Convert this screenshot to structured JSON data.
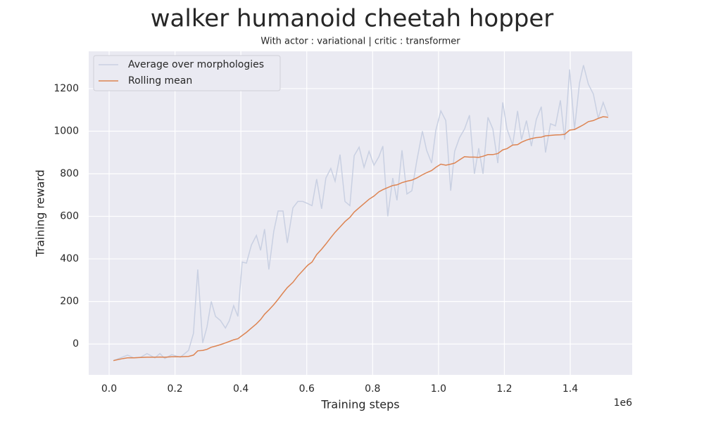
{
  "chart_data": {
    "type": "line",
    "title": "walker humanoid cheetah hopper",
    "subtitle": "With actor : variational | critic : transformer",
    "xlabel": "Training steps",
    "ylabel": "Training reward",
    "x_offset_label": "1e6",
    "x": [
      13000,
      43000,
      56000,
      75000,
      96000,
      115000,
      139000,
      154000,
      169000,
      190000,
      216000,
      241000,
      256000,
      269000,
      284000,
      297000,
      310000,
      323000,
      338000,
      353000,
      365000,
      378000,
      391000,
      404000,
      417000,
      432000,
      447000,
      460000,
      472000,
      485000,
      500000,
      513000,
      528000,
      541000,
      558000,
      573000,
      588000,
      603000,
      616000,
      630000,
      645000,
      658000,
      673000,
      686000,
      701000,
      716000,
      731000,
      744000,
      759000,
      774000,
      789000,
      804000,
      819000,
      831000,
      846000,
      861000,
      874000,
      889000,
      904000,
      919000,
      934000,
      951000,
      964000,
      979000,
      992000,
      1007000,
      1022000,
      1037000,
      1049000,
      1064000,
      1079000,
      1094000,
      1109000,
      1122000,
      1135000,
      1150000,
      1165000,
      1180000,
      1195000,
      1208000,
      1225000,
      1240000,
      1252000,
      1267000,
      1282000,
      1297000,
      1312000,
      1325000,
      1340000,
      1355000,
      1370000,
      1383000,
      1398000,
      1413000,
      1428000,
      1440000,
      1455000,
      1470000,
      1485000,
      1500000,
      1515000
    ],
    "series": [
      {
        "name": "Average over morphologies",
        "color": "#c9d0e2",
        "values": [
          -78,
          -60,
          -52,
          -65,
          -62,
          -45,
          -65,
          -45,
          -68,
          -50,
          -62,
          -30,
          50,
          350,
          5,
          80,
          200,
          130,
          110,
          75,
          110,
          180,
          130,
          385,
          380,
          465,
          510,
          440,
          540,
          350,
          530,
          625,
          625,
          475,
          640,
          670,
          670,
          660,
          650,
          775,
          635,
          780,
          825,
          765,
          890,
          670,
          650,
          885,
          925,
          830,
          905,
          840,
          880,
          930,
          600,
          780,
          675,
          910,
          705,
          720,
          860,
          1000,
          910,
          850,
          1005,
          1095,
          1050,
          720,
          905,
          970,
          1010,
          1075,
          800,
          920,
          800,
          1065,
          1010,
          850,
          1135,
          1010,
          935,
          1095,
          960,
          1050,
          930,
          1055,
          1115,
          900,
          1035,
          1025,
          1145,
          960,
          1290,
          1010,
          1225,
          1310,
          1220,
          1175,
          1060,
          1135,
          1070
        ]
      },
      {
        "name": "Rolling mean",
        "color": "#dd8452",
        "values": [
          -78,
          -68,
          -65,
          -65,
          -63,
          -62,
          -62,
          -61,
          -62,
          -60,
          -60,
          -58,
          -52,
          -32,
          -30,
          -25,
          -15,
          -10,
          -3,
          5,
          12,
          20,
          25,
          40,
          55,
          75,
          95,
          115,
          140,
          160,
          185,
          210,
          240,
          265,
          290,
          320,
          345,
          370,
          385,
          420,
          445,
          470,
          500,
          525,
          550,
          575,
          595,
          620,
          640,
          660,
          680,
          695,
          715,
          725,
          735,
          745,
          748,
          758,
          765,
          770,
          780,
          795,
          805,
          815,
          830,
          845,
          840,
          845,
          850,
          865,
          880,
          878,
          878,
          877,
          882,
          890,
          890,
          895,
          912,
          918,
          935,
          937,
          948,
          958,
          965,
          970,
          972,
          978,
          980,
          982,
          983,
          985,
          1005,
          1008,
          1020,
          1030,
          1045,
          1050,
          1060,
          1068,
          1065
        ]
      }
    ],
    "xlim": [
      -62000,
      1588000
    ],
    "xticks": [
      {
        "value": 0,
        "label": "0.0"
      },
      {
        "value": 200000,
        "label": "0.2"
      },
      {
        "value": 400000,
        "label": "0.4"
      },
      {
        "value": 600000,
        "label": "0.6"
      },
      {
        "value": 800000,
        "label": "0.8"
      },
      {
        "value": 1000000,
        "label": "1.0"
      },
      {
        "value": 1200000,
        "label": "1.2"
      },
      {
        "value": 1400000,
        "label": "1.4"
      }
    ],
    "ylim": [
      -145,
      1375
    ],
    "yticks": [
      0,
      200,
      400,
      600,
      800,
      1000,
      1200
    ],
    "grid": true,
    "legend": "upper left"
  }
}
